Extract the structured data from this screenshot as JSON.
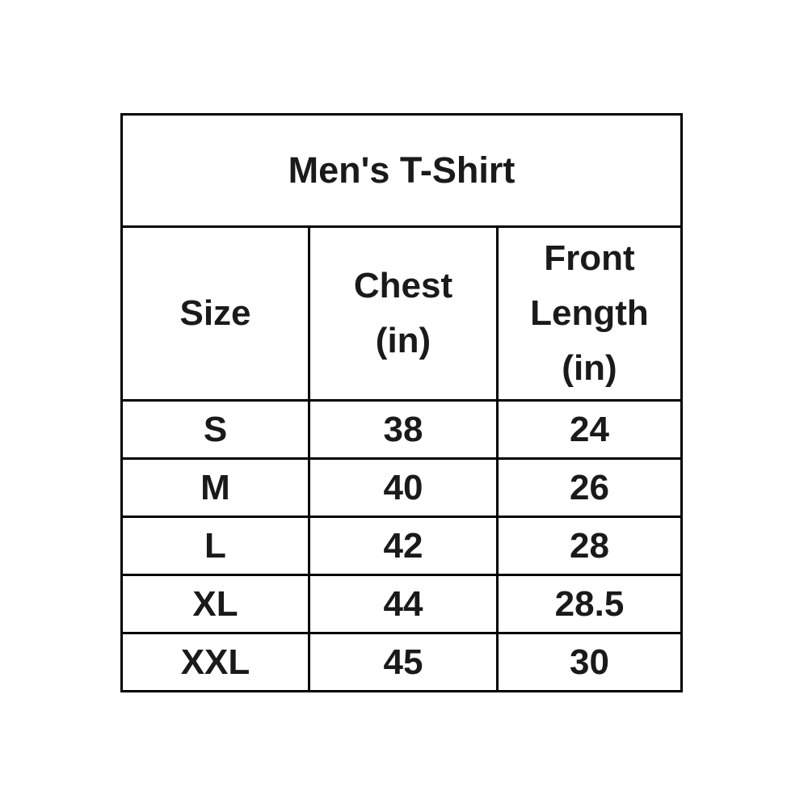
{
  "chart_data": {
    "type": "table",
    "title": "Men's T-Shirt",
    "columns": [
      "Size",
      "Chest (in)",
      "Front Length (in)"
    ],
    "rows": [
      [
        "S",
        "38",
        "24"
      ],
      [
        "M",
        "40",
        "26"
      ],
      [
        "L",
        "42",
        "28"
      ],
      [
        "XL",
        "44",
        "28.5"
      ],
      [
        "XXL",
        "45",
        "30"
      ]
    ]
  },
  "display": {
    "header_lines": [
      "Size",
      "Chest\n(in)",
      "Front\nLength\n(in)"
    ]
  },
  "colors": {
    "border": "#000000",
    "text": "#1a1a1a",
    "background": "#ffffff"
  }
}
